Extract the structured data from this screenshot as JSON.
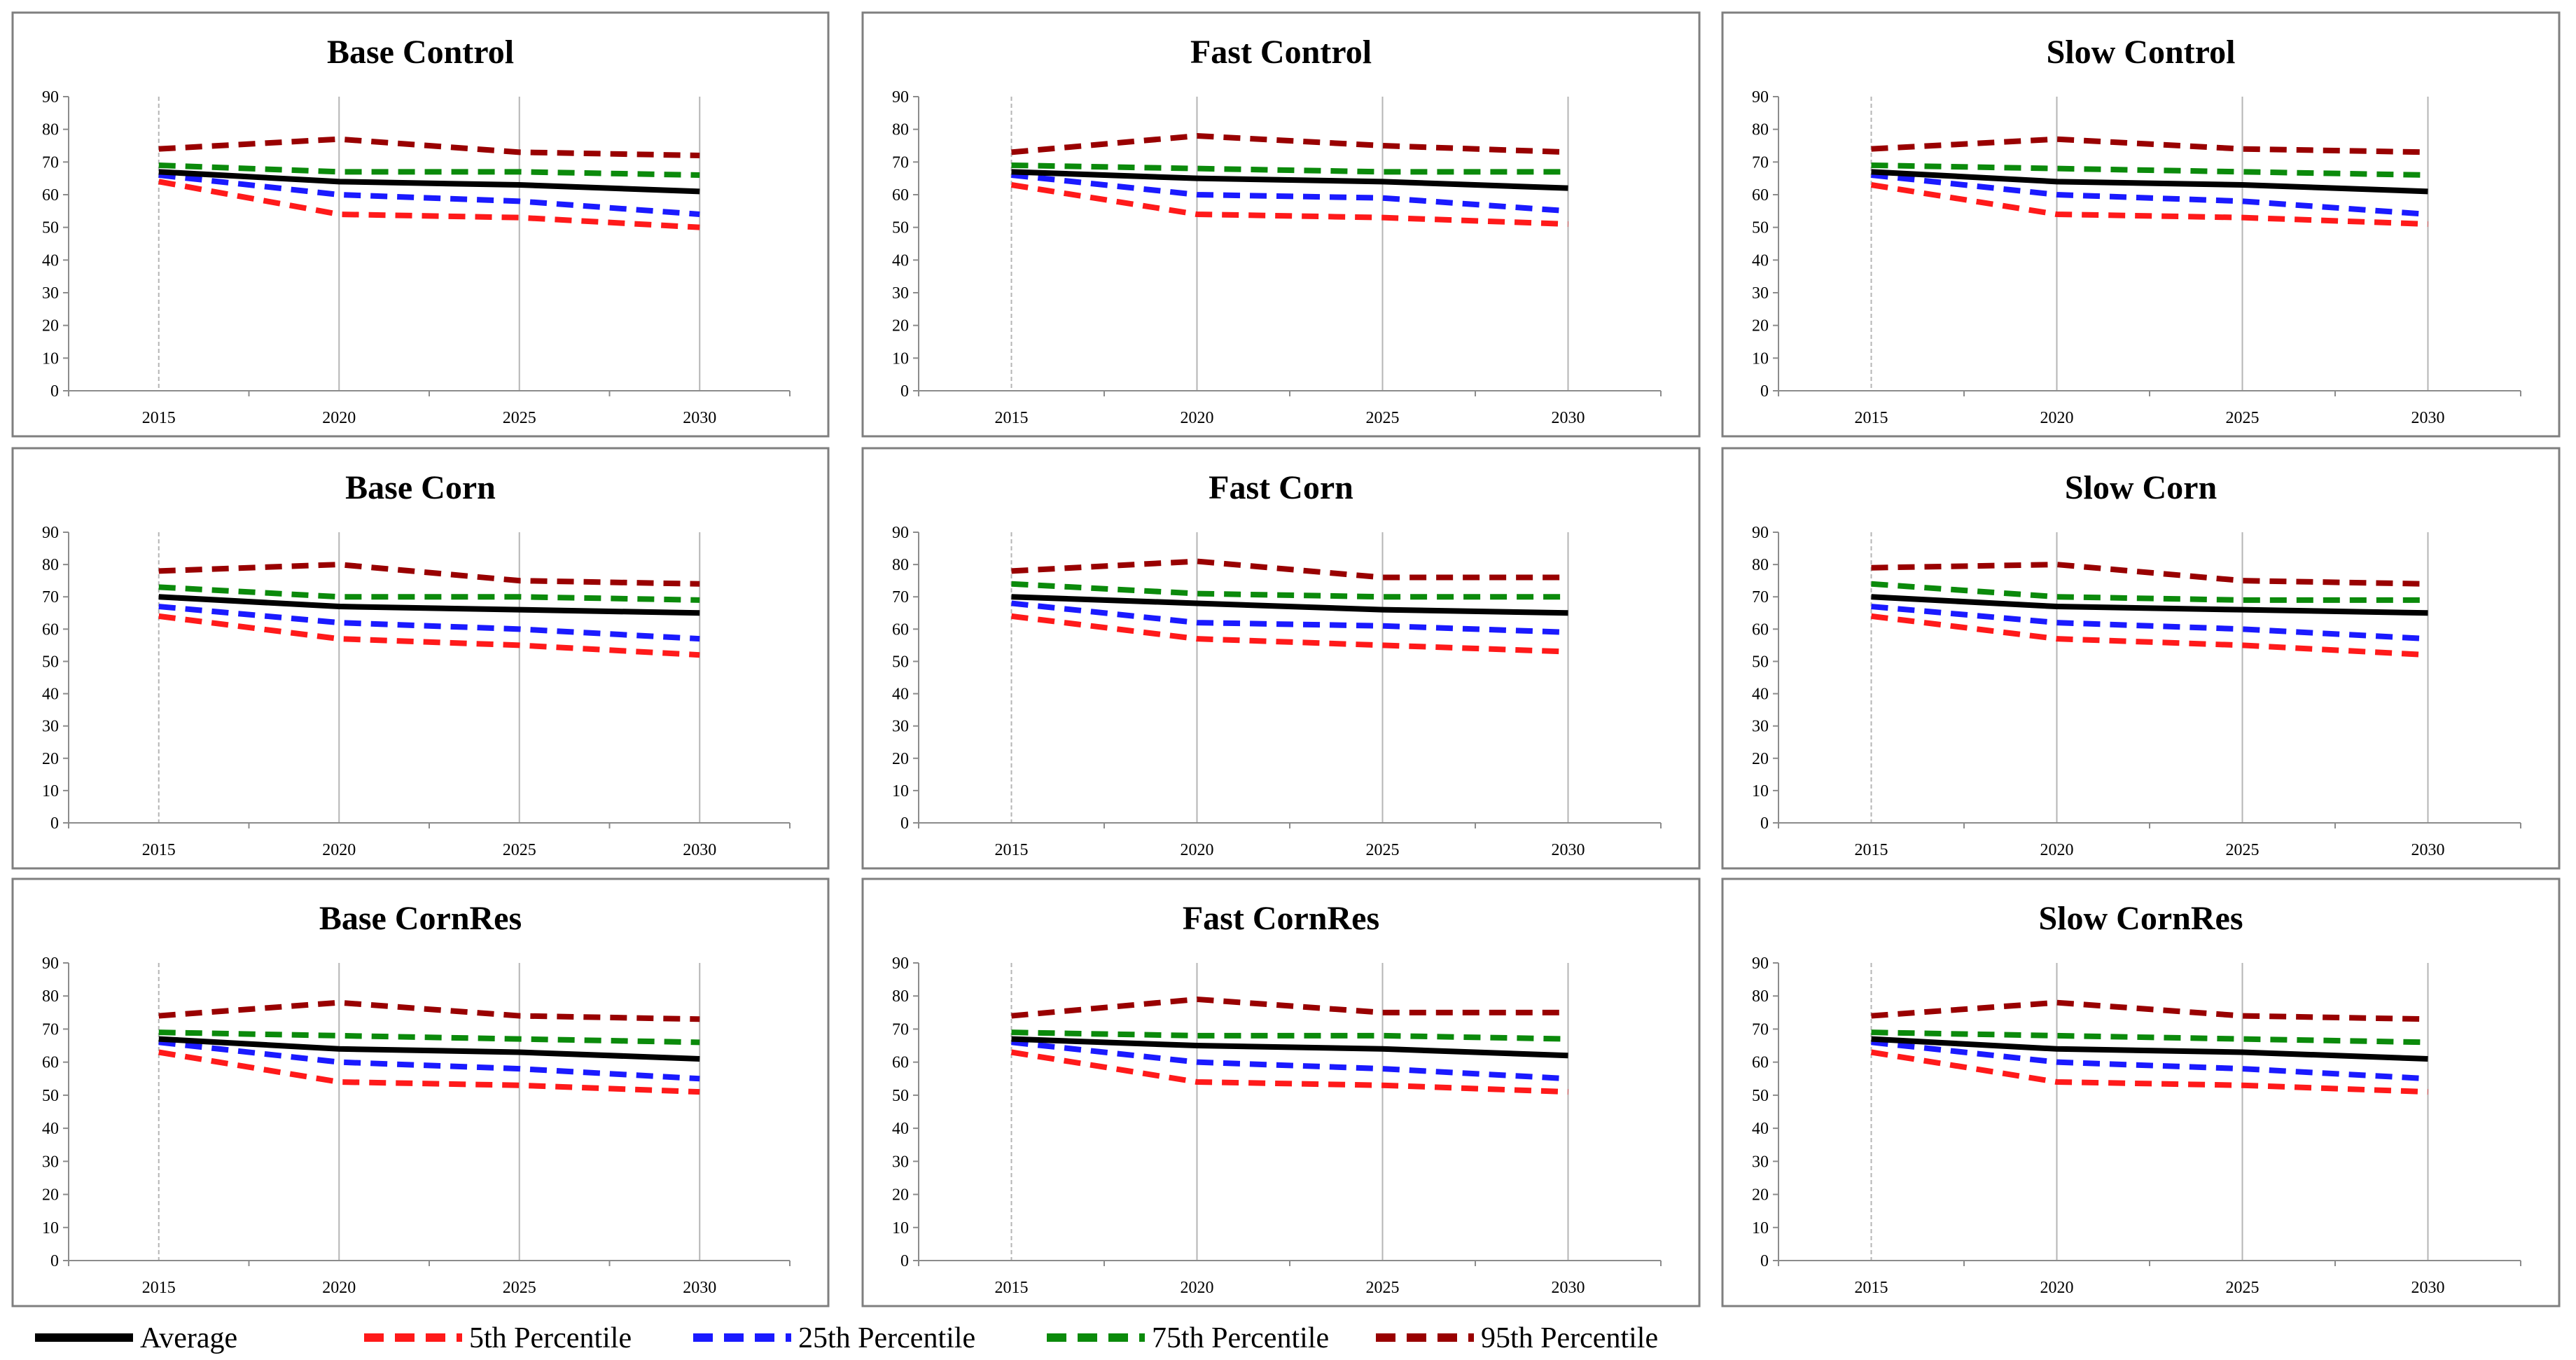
{
  "figure": {
    "colors": {
      "average": "#000000",
      "p5": "#ff1a1a",
      "p25": "#1a1aff",
      "p75": "#0b8a0b",
      "p95": "#990000"
    }
  },
  "legend": [
    {
      "label": "Average",
      "series_key": "average",
      "style": "solid"
    },
    {
      "label": "5th Percentile",
      "series_key": "p5",
      "style": "dashed"
    },
    {
      "label": "25th Percentile",
      "series_key": "p25",
      "style": "dashed"
    },
    {
      "label": "75th Percentile",
      "series_key": "p75",
      "style": "dashed"
    },
    {
      "label": "95th Percentile",
      "series_key": "p95",
      "style": "dashed"
    }
  ],
  "chart_data": [
    {
      "type": "line",
      "title": "Base Control",
      "categories": [
        "2015",
        "2020",
        "2025",
        "2030"
      ],
      "ylim": [
        0,
        90
      ],
      "yticks": [
        0,
        10,
        20,
        30,
        40,
        50,
        60,
        70,
        80,
        90
      ],
      "grid": "vertical",
      "series": [
        {
          "name": "Average",
          "key": "average",
          "values": [
            67,
            64,
            63,
            61
          ]
        },
        {
          "name": "5th Percentile",
          "key": "p5",
          "values": [
            64,
            54,
            53,
            50
          ]
        },
        {
          "name": "25th Percentile",
          "key": "p25",
          "values": [
            66,
            60,
            58,
            54
          ]
        },
        {
          "name": "75th Percentile",
          "key": "p75",
          "values": [
            69,
            67,
            67,
            66
          ]
        },
        {
          "name": "95th Percentile",
          "key": "p95",
          "values": [
            74,
            77,
            73,
            72
          ]
        }
      ]
    },
    {
      "type": "line",
      "title": "Fast Control",
      "categories": [
        "2015",
        "2020",
        "2025",
        "2030"
      ],
      "ylim": [
        0,
        90
      ],
      "yticks": [
        0,
        10,
        20,
        30,
        40,
        50,
        60,
        70,
        80,
        90
      ],
      "grid": "vertical",
      "series": [
        {
          "name": "Average",
          "key": "average",
          "values": [
            67,
            65,
            64,
            62
          ]
        },
        {
          "name": "5th Percentile",
          "key": "p5",
          "values": [
            63,
            54,
            53,
            51
          ]
        },
        {
          "name": "25th Percentile",
          "key": "p25",
          "values": [
            66,
            60,
            59,
            55
          ]
        },
        {
          "name": "75th Percentile",
          "key": "p75",
          "values": [
            69,
            68,
            67,
            67
          ]
        },
        {
          "name": "95th Percentile",
          "key": "p95",
          "values": [
            73,
            78,
            75,
            73
          ]
        }
      ]
    },
    {
      "type": "line",
      "title": "Slow Control",
      "categories": [
        "2015",
        "2020",
        "2025",
        "2030"
      ],
      "ylim": [
        0,
        90
      ],
      "yticks": [
        0,
        10,
        20,
        30,
        40,
        50,
        60,
        70,
        80,
        90
      ],
      "grid": "vertical",
      "series": [
        {
          "name": "Average",
          "key": "average",
          "values": [
            67,
            64,
            63,
            61
          ]
        },
        {
          "name": "5th Percentile",
          "key": "p5",
          "values": [
            63,
            54,
            53,
            51
          ]
        },
        {
          "name": "25th Percentile",
          "key": "p25",
          "values": [
            66,
            60,
            58,
            54
          ]
        },
        {
          "name": "75th Percentile",
          "key": "p75",
          "values": [
            69,
            68,
            67,
            66
          ]
        },
        {
          "name": "95th Percentile",
          "key": "p95",
          "values": [
            74,
            77,
            74,
            73
          ]
        }
      ]
    },
    {
      "type": "line",
      "title": "Base Corn",
      "categories": [
        "2015",
        "2020",
        "2025",
        "2030"
      ],
      "ylim": [
        0,
        90
      ],
      "yticks": [
        0,
        10,
        20,
        30,
        40,
        50,
        60,
        70,
        80,
        90
      ],
      "grid": "vertical",
      "series": [
        {
          "name": "Average",
          "key": "average",
          "values": [
            70,
            67,
            66,
            65
          ]
        },
        {
          "name": "5th Percentile",
          "key": "p5",
          "values": [
            64,
            57,
            55,
            52
          ]
        },
        {
          "name": "25th Percentile",
          "key": "p25",
          "values": [
            67,
            62,
            60,
            57
          ]
        },
        {
          "name": "75th Percentile",
          "key": "p75",
          "values": [
            73,
            70,
            70,
            69
          ]
        },
        {
          "name": "95th Percentile",
          "key": "p95",
          "values": [
            78,
            80,
            75,
            74
          ]
        }
      ]
    },
    {
      "type": "line",
      "title": "Fast Corn",
      "categories": [
        "2015",
        "2020",
        "2025",
        "2030"
      ],
      "ylim": [
        0,
        90
      ],
      "yticks": [
        0,
        10,
        20,
        30,
        40,
        50,
        60,
        70,
        80,
        90
      ],
      "grid": "vertical",
      "series": [
        {
          "name": "Average",
          "key": "average",
          "values": [
            70,
            68,
            66,
            65
          ]
        },
        {
          "name": "5th Percentile",
          "key": "p5",
          "values": [
            64,
            57,
            55,
            53
          ]
        },
        {
          "name": "25th Percentile",
          "key": "p25",
          "values": [
            68,
            62,
            61,
            59
          ]
        },
        {
          "name": "75th Percentile",
          "key": "p75",
          "values": [
            74,
            71,
            70,
            70
          ]
        },
        {
          "name": "95th Percentile",
          "key": "p95",
          "values": [
            78,
            81,
            76,
            76
          ]
        }
      ]
    },
    {
      "type": "line",
      "title": "Slow Corn",
      "categories": [
        "2015",
        "2020",
        "2025",
        "2030"
      ],
      "ylim": [
        0,
        90
      ],
      "yticks": [
        0,
        10,
        20,
        30,
        40,
        50,
        60,
        70,
        80,
        90
      ],
      "grid": "vertical",
      "series": [
        {
          "name": "Average",
          "key": "average",
          "values": [
            70,
            67,
            66,
            65
          ]
        },
        {
          "name": "5th Percentile",
          "key": "p5",
          "values": [
            64,
            57,
            55,
            52
          ]
        },
        {
          "name": "25th Percentile",
          "key": "p25",
          "values": [
            67,
            62,
            60,
            57
          ]
        },
        {
          "name": "75th Percentile",
          "key": "p75",
          "values": [
            74,
            70,
            69,
            69
          ]
        },
        {
          "name": "95th Percentile",
          "key": "p95",
          "values": [
            79,
            80,
            75,
            74
          ]
        }
      ]
    },
    {
      "type": "line",
      "title": "Base CornRes",
      "categories": [
        "2015",
        "2020",
        "2025",
        "2030"
      ],
      "ylim": [
        0,
        90
      ],
      "yticks": [
        0,
        10,
        20,
        30,
        40,
        50,
        60,
        70,
        80,
        90
      ],
      "grid": "vertical",
      "series": [
        {
          "name": "Average",
          "key": "average",
          "values": [
            67,
            64,
            63,
            61
          ]
        },
        {
          "name": "5th Percentile",
          "key": "p5",
          "values": [
            63,
            54,
            53,
            51
          ]
        },
        {
          "name": "25th Percentile",
          "key": "p25",
          "values": [
            66,
            60,
            58,
            55
          ]
        },
        {
          "name": "75th Percentile",
          "key": "p75",
          "values": [
            69,
            68,
            67,
            66
          ]
        },
        {
          "name": "95th Percentile",
          "key": "p95",
          "values": [
            74,
            78,
            74,
            73
          ]
        }
      ]
    },
    {
      "type": "line",
      "title": "Fast CornRes",
      "categories": [
        "2015",
        "2020",
        "2025",
        "2030"
      ],
      "ylim": [
        0,
        90
      ],
      "yticks": [
        0,
        10,
        20,
        30,
        40,
        50,
        60,
        70,
        80,
        90
      ],
      "grid": "vertical",
      "series": [
        {
          "name": "Average",
          "key": "average",
          "values": [
            67,
            65,
            64,
            62
          ]
        },
        {
          "name": "5th Percentile",
          "key": "p5",
          "values": [
            63,
            54,
            53,
            51
          ]
        },
        {
          "name": "25th Percentile",
          "key": "p25",
          "values": [
            66,
            60,
            58,
            55
          ]
        },
        {
          "name": "75th Percentile",
          "key": "p75",
          "values": [
            69,
            68,
            68,
            67
          ]
        },
        {
          "name": "95th Percentile",
          "key": "p95",
          "values": [
            74,
            79,
            75,
            75
          ]
        }
      ]
    },
    {
      "type": "line",
      "title": "Slow CornRes",
      "categories": [
        "2015",
        "2020",
        "2025",
        "2030"
      ],
      "ylim": [
        0,
        90
      ],
      "yticks": [
        0,
        10,
        20,
        30,
        40,
        50,
        60,
        70,
        80,
        90
      ],
      "grid": "vertical",
      "series": [
        {
          "name": "Average",
          "key": "average",
          "values": [
            67,
            64,
            63,
            61
          ]
        },
        {
          "name": "5th Percentile",
          "key": "p5",
          "values": [
            63,
            54,
            53,
            51
          ]
        },
        {
          "name": "25th Percentile",
          "key": "p25",
          "values": [
            66,
            60,
            58,
            55
          ]
        },
        {
          "name": "75th Percentile",
          "key": "p75",
          "values": [
            69,
            68,
            67,
            66
          ]
        },
        {
          "name": "95th Percentile",
          "key": "p95",
          "values": [
            74,
            78,
            74,
            73
          ]
        }
      ]
    }
  ]
}
